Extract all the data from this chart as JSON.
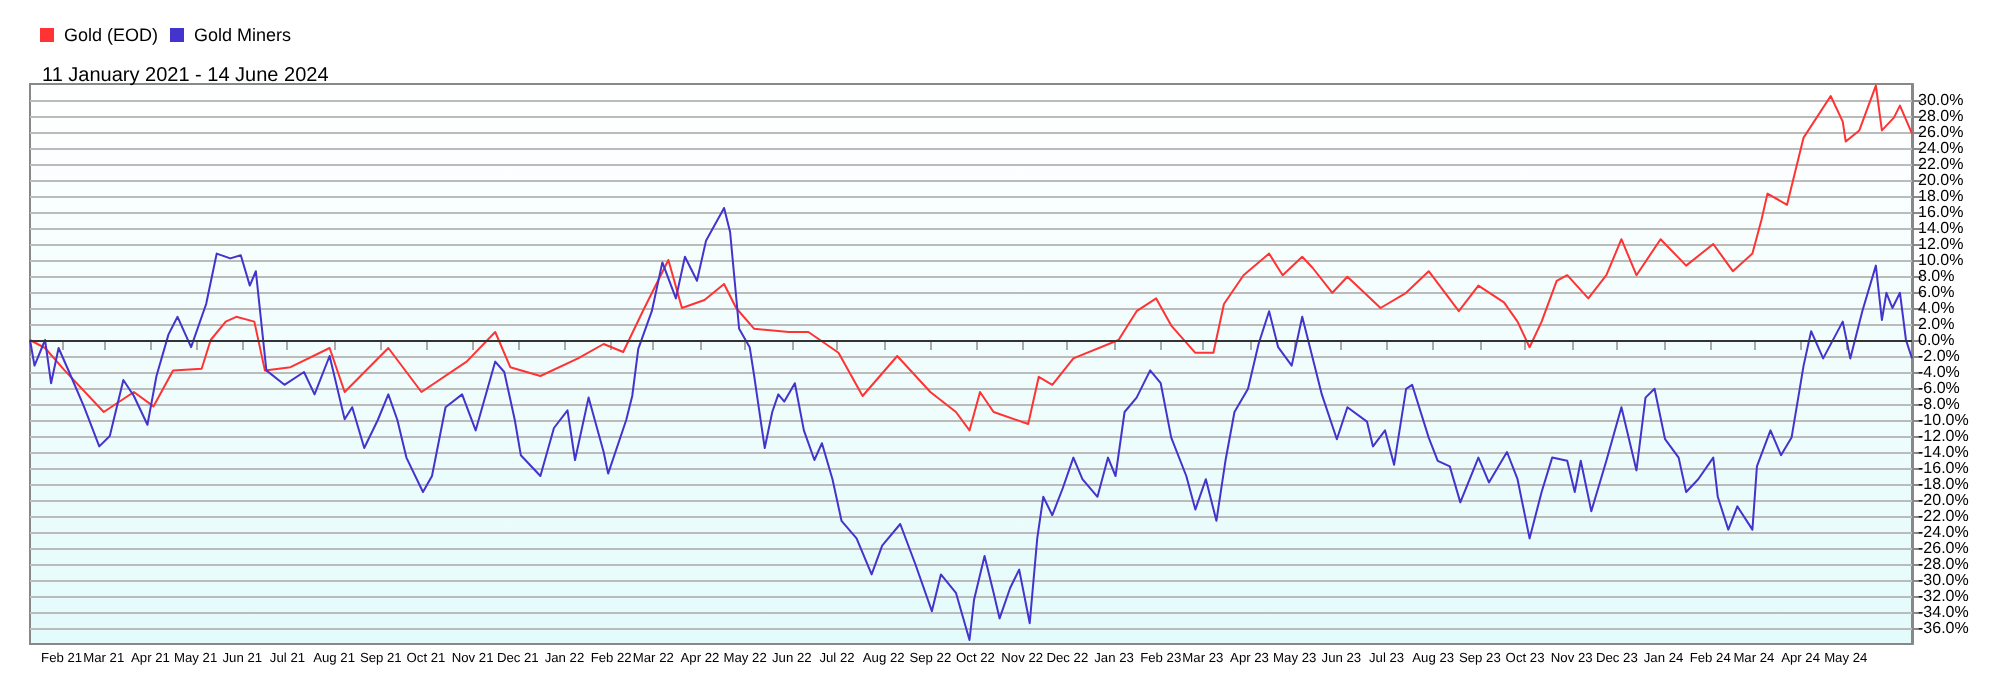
{
  "chart_data": {
    "type": "line",
    "subtitle": "11 January 2021 - 14 June 2024",
    "legend": "top left",
    "grid": "y",
    "xlim": [
      "2021-01-11",
      "2024-06-14"
    ],
    "ylim": [
      -38,
      32
    ],
    "xticks": [
      {
        "value": "2021-02-01",
        "label": "Feb 21"
      },
      {
        "value": "2021-03-01",
        "label": "Mar 21"
      },
      {
        "value": "2021-04-01",
        "label": "Apr 21"
      },
      {
        "value": "2021-05-01",
        "label": "May 21"
      },
      {
        "value": "2021-06-01",
        "label": "Jun 21"
      },
      {
        "value": "2021-07-01",
        "label": "Jul 21"
      },
      {
        "value": "2021-08-01",
        "label": "Aug 21"
      },
      {
        "value": "2021-09-01",
        "label": "Sep 21"
      },
      {
        "value": "2021-10-01",
        "label": "Oct 21"
      },
      {
        "value": "2021-11-01",
        "label": "Nov 21"
      },
      {
        "value": "2021-12-01",
        "label": "Dec 21"
      },
      {
        "value": "2022-01-01",
        "label": "Jan 22"
      },
      {
        "value": "2022-02-01",
        "label": "Feb 22"
      },
      {
        "value": "2022-03-01",
        "label": "Mar 22"
      },
      {
        "value": "2022-04-01",
        "label": "Apr 22"
      },
      {
        "value": "2022-05-01",
        "label": "May 22"
      },
      {
        "value": "2022-06-01",
        "label": "Jun 22"
      },
      {
        "value": "2022-07-01",
        "label": "Jul 22"
      },
      {
        "value": "2022-08-01",
        "label": "Aug 22"
      },
      {
        "value": "2022-09-01",
        "label": "Sep 22"
      },
      {
        "value": "2022-10-01",
        "label": "Oct 22"
      },
      {
        "value": "2022-11-01",
        "label": "Nov 22"
      },
      {
        "value": "2022-12-01",
        "label": "Dec 22"
      },
      {
        "value": "2023-01-01",
        "label": "Jan 23"
      },
      {
        "value": "2023-02-01",
        "label": "Feb 23"
      },
      {
        "value": "2023-03-01",
        "label": "Mar 23"
      },
      {
        "value": "2023-04-01",
        "label": "Apr 23"
      },
      {
        "value": "2023-05-01",
        "label": "May 23"
      },
      {
        "value": "2023-06-01",
        "label": "Jun 23"
      },
      {
        "value": "2023-07-01",
        "label": "Jul 23"
      },
      {
        "value": "2023-08-01",
        "label": "Aug 23"
      },
      {
        "value": "2023-09-01",
        "label": "Sep 23"
      },
      {
        "value": "2023-10-01",
        "label": "Oct 23"
      },
      {
        "value": "2023-11-01",
        "label": "Nov 23"
      },
      {
        "value": "2023-12-01",
        "label": "Dec 23"
      },
      {
        "value": "2024-01-01",
        "label": "Jan 24"
      },
      {
        "value": "2024-02-01",
        "label": "Feb 24"
      },
      {
        "value": "2024-03-01",
        "label": "Mar 24"
      },
      {
        "value": "2024-04-01",
        "label": "Apr 24"
      },
      {
        "value": "2024-05-01",
        "label": "May 24"
      }
    ],
    "yticks": [
      {
        "value": -36,
        "label": "-36.0%"
      },
      {
        "value": -34,
        "label": "-34.0%"
      },
      {
        "value": -32,
        "label": "-32.0%"
      },
      {
        "value": -30,
        "label": "-30.0%"
      },
      {
        "value": -28,
        "label": "-28.0%"
      },
      {
        "value": -26,
        "label": "-26.0%"
      },
      {
        "value": -24,
        "label": "-24.0%"
      },
      {
        "value": -22,
        "label": "-22.0%"
      },
      {
        "value": -20,
        "label": "-20.0%"
      },
      {
        "value": -18,
        "label": "-18.0%"
      },
      {
        "value": -16,
        "label": "-16.0%"
      },
      {
        "value": -14,
        "label": "-14.0%"
      },
      {
        "value": -12,
        "label": "-12.0%"
      },
      {
        "value": -10,
        "label": "-10.0%"
      },
      {
        "value": -8,
        "label": "-8.0%"
      },
      {
        "value": -6,
        "label": "-6.0%"
      },
      {
        "value": -4,
        "label": "-4.0%"
      },
      {
        "value": -2,
        "label": "-2.0%"
      },
      {
        "value": 0,
        "label": "0.0%"
      },
      {
        "value": 2,
        "label": "2.0%"
      },
      {
        "value": 4,
        "label": "4.0%"
      },
      {
        "value": 6,
        "label": "6.0%"
      },
      {
        "value": 8,
        "label": "8.0%"
      },
      {
        "value": 10,
        "label": "10.0%"
      },
      {
        "value": 12,
        "label": "12.0%"
      },
      {
        "value": 14,
        "label": "14.0%"
      },
      {
        "value": 16,
        "label": "16.0%"
      },
      {
        "value": 18,
        "label": "18.0%"
      },
      {
        "value": 20,
        "label": "20.0%"
      },
      {
        "value": 22,
        "label": "22.0%"
      },
      {
        "value": 24,
        "label": "24.0%"
      },
      {
        "value": 26,
        "label": "26.0%"
      },
      {
        "value": 28,
        "label": "28.0%"
      },
      {
        "value": 30,
        "label": "30.0%"
      }
    ],
    "ref_lines": [
      {
        "axis": "y",
        "value": 0,
        "color": "#333333"
      }
    ],
    "series": [
      {
        "name": "Gold (EOD)",
        "color": "#ff3333",
        "x": [
          "2021-01-11",
          "2021-01-21",
          "2021-02-03",
          "2021-03-01",
          "2021-03-21",
          "2021-04-03",
          "2021-04-16",
          "2021-05-05",
          "2021-05-11",
          "2021-05-21",
          "2021-05-28",
          "2021-06-09",
          "2021-06-16",
          "2021-07-03",
          "2021-07-29",
          "2021-08-08",
          "2021-09-06",
          "2021-09-28",
          "2021-10-28",
          "2021-11-16",
          "2021-11-26",
          "2021-12-16",
          "2022-01-10",
          "2022-01-27",
          "2022-02-09",
          "2022-02-22",
          "2022-03-11",
          "2022-03-20",
          "2022-04-04",
          "2022-04-17",
          "2022-04-25",
          "2022-05-07",
          "2022-05-30",
          "2022-06-12",
          "2022-07-02",
          "2022-07-18",
          "2022-08-10",
          "2022-09-01",
          "2022-09-18",
          "2022-09-27",
          "2022-10-04",
          "2022-10-13",
          "2022-11-05",
          "2022-11-12",
          "2022-11-21",
          "2022-12-05",
          "2023-01-04",
          "2023-01-16",
          "2023-01-29",
          "2023-02-08",
          "2023-02-24",
          "2023-03-08",
          "2023-03-15",
          "2023-03-28",
          "2023-04-14",
          "2023-04-23",
          "2023-05-06",
          "2023-05-13",
          "2023-05-26",
          "2023-06-05",
          "2023-06-27",
          "2023-07-14",
          "2023-07-29",
          "2023-08-18",
          "2023-08-31",
          "2023-09-17",
          "2023-09-26",
          "2023-10-04",
          "2023-10-12",
          "2023-10-22",
          "2023-10-29",
          "2023-11-12",
          "2023-11-24",
          "2023-12-04",
          "2023-12-14",
          "2023-12-30",
          "2024-01-16",
          "2024-02-03",
          "2024-02-16",
          "2024-02-29",
          "2024-03-06",
          "2024-03-10",
          "2024-03-23",
          "2024-04-03",
          "2024-04-21",
          "2024-04-29",
          "2024-05-01",
          "2024-05-10",
          "2024-05-21",
          "2024-05-25",
          "2024-06-02",
          "2024-06-06",
          "2024-06-14"
        ],
        "values": [
          0,
          -1,
          -3.8,
          -9,
          -6.5,
          -8.3,
          -3.8,
          -3.6,
          0,
          2.3,
          2.9,
          2.3,
          -3.8,
          -3.4,
          -1,
          -6.5,
          -1,
          -6.5,
          -2.7,
          1,
          -3.4,
          -4.5,
          -2.3,
          -0.5,
          -1.5,
          3.6,
          10,
          4,
          5,
          7,
          4,
          1.4,
          1,
          1,
          -1.6,
          -7,
          -2,
          -6.5,
          -9,
          -11.3,
          -6.5,
          -9,
          -10.5,
          -4.6,
          -5.6,
          -2.3,
          0,
          3.6,
          5.2,
          1.8,
          -1.6,
          -1.6,
          4.5,
          8.1,
          10.8,
          8.1,
          10.4,
          9,
          5.9,
          7.9,
          4,
          5.9,
          8.6,
          3.6,
          6.8,
          4.7,
          2.3,
          -0.9,
          2.3,
          7.4,
          8.1,
          5.2,
          8.1,
          12.6,
          8.1,
          12.6,
          9.3,
          12,
          8.6,
          10.8,
          15,
          18.3,
          16.9,
          25.3,
          30.5,
          27.3,
          24.8,
          26.2,
          31.8,
          26.2,
          27.8,
          29.3,
          25.8
        ]
      },
      {
        "name": "Gold Miners",
        "color": "#4433cc",
        "x": [
          "2021-01-11",
          "2021-01-14",
          "2021-01-21",
          "2021-01-25",
          "2021-01-30",
          "2021-02-06",
          "2021-02-16",
          "2021-02-26",
          "2021-03-05",
          "2021-03-14",
          "2021-03-21",
          "2021-03-30",
          "2021-04-05",
          "2021-04-13",
          "2021-04-19",
          "2021-04-28",
          "2021-05-08",
          "2021-05-15",
          "2021-05-24",
          "2021-05-31",
          "2021-06-06",
          "2021-06-10",
          "2021-06-17",
          "2021-06-29",
          "2021-07-12",
          "2021-07-19",
          "2021-07-29",
          "2021-08-08",
          "2021-08-13",
          "2021-08-21",
          "2021-08-30",
          "2021-09-06",
          "2021-09-12",
          "2021-09-18",
          "2021-09-29",
          "2021-10-05",
          "2021-10-14",
          "2021-10-25",
          "2021-11-03",
          "2021-11-16",
          "2021-11-22",
          "2021-11-29",
          "2021-12-03",
          "2021-12-16",
          "2021-12-25",
          "2022-01-03",
          "2022-01-08",
          "2022-01-17",
          "2022-01-27",
          "2022-01-30",
          "2022-02-11",
          "2022-02-15",
          "2022-02-19",
          "2022-02-28",
          "2022-03-07",
          "2022-03-16",
          "2022-03-22",
          "2022-03-30",
          "2022-04-05",
          "2022-04-17",
          "2022-04-21",
          "2022-04-27",
          "2022-05-04",
          "2022-05-07",
          "2022-05-10",
          "2022-05-14",
          "2022-05-19",
          "2022-05-23",
          "2022-05-27",
          "2022-06-03",
          "2022-06-09",
          "2022-06-16",
          "2022-06-21",
          "2022-06-28",
          "2022-07-04",
          "2022-07-14",
          "2022-07-24",
          "2022-07-31",
          "2022-08-12",
          "2022-08-22",
          "2022-09-02",
          "2022-09-08",
          "2022-09-18",
          "2022-09-27",
          "2022-09-30",
          "2022-10-07",
          "2022-10-13",
          "2022-10-17",
          "2022-10-24",
          "2022-10-30",
          "2022-11-06",
          "2022-11-11",
          "2022-11-15",
          "2022-11-21",
          "2022-11-28",
          "2022-12-05",
          "2022-12-11",
          "2022-12-21",
          "2022-12-28",
          "2023-01-02",
          "2023-01-08",
          "2023-01-16",
          "2023-01-25",
          "2023-02-01",
          "2023-02-08",
          "2023-02-18",
          "2023-02-24",
          "2023-03-03",
          "2023-03-10",
          "2023-03-16",
          "2023-03-22",
          "2023-03-31",
          "2023-04-07",
          "2023-04-14",
          "2023-04-20",
          "2023-04-29",
          "2023-05-06",
          "2023-05-13",
          "2023-05-19",
          "2023-05-29",
          "2023-06-05",
          "2023-06-18",
          "2023-06-22",
          "2023-06-30",
          "2023-07-06",
          "2023-07-14",
          "2023-07-18",
          "2023-07-29",
          "2023-08-04",
          "2023-08-12",
          "2023-08-19",
          "2023-08-31",
          "2023-09-07",
          "2023-09-19",
          "2023-09-26",
          "2023-10-04",
          "2023-10-12",
          "2023-10-19",
          "2023-10-29",
          "2023-11-03",
          "2023-11-07",
          "2023-11-14",
          "2023-11-24",
          "2023-12-04",
          "2023-12-14",
          "2023-12-20",
          "2023-12-26",
          "2024-01-02",
          "2024-01-11",
          "2024-01-16",
          "2024-01-24",
          "2024-02-03",
          "2024-02-06",
          "2024-02-13",
          "2024-02-19",
          "2024-02-29",
          "2024-03-03",
          "2024-03-12",
          "2024-03-19",
          "2024-03-26",
          "2024-04-03",
          "2024-04-08",
          "2024-04-16",
          "2024-04-29",
          "2024-05-04",
          "2024-05-12",
          "2024-05-21",
          "2024-05-25",
          "2024-05-28",
          "2024-06-01",
          "2024-06-06",
          "2024-06-10",
          "2024-06-14"
        ],
        "values": [
          0,
          -3.2,
          0,
          -5.4,
          -1,
          -4,
          -8.4,
          -13.3,
          -12,
          -5,
          -7,
          -10.6,
          -4.5,
          0.7,
          2.9,
          -0.9,
          4.5,
          10.8,
          10.2,
          10.6,
          6.8,
          8.6,
          -3.8,
          -5.6,
          -4,
          -6.8,
          -2,
          -9.9,
          -8.4,
          -13.5,
          -10,
          -6.8,
          -10,
          -14.7,
          -19,
          -17,
          -8.4,
          -6.8,
          -11.3,
          -2.7,
          -4,
          -10,
          -14.4,
          -17,
          -11,
          -8.8,
          -15,
          -7.2,
          -14,
          -16.7,
          -10,
          -7,
          -1.1,
          3.6,
          9.7,
          5.2,
          10.4,
          7.4,
          12.4,
          16.5,
          13.5,
          1.4,
          -0.9,
          -4.5,
          -8.4,
          -13.5,
          -9,
          -6.8,
          -7.7,
          -5.4,
          -11.3,
          -15,
          -12.9,
          -17.4,
          -22.6,
          -24.8,
          -29.3,
          -25.7,
          -23,
          -28,
          -33.9,
          -29.3,
          -31.6,
          -37.5,
          -32.5,
          -27,
          -31.6,
          -34.8,
          -31,
          -28.7,
          -35.4,
          -24.8,
          -19.6,
          -21.9,
          -18.5,
          -14.7,
          -17.4,
          -19.6,
          -14.7,
          -17,
          -9,
          -7.2,
          -3.8,
          -5.4,
          -12.2,
          -17,
          -21.2,
          -17.4,
          -22.6,
          -15.1,
          -9,
          -6.1,
          -0.5,
          3.6,
          -0.9,
          -3.2,
          2.9,
          -2.3,
          -6.8,
          -12.4,
          -8.4,
          -10.2,
          -13.3,
          -11.3,
          -15.6,
          -6.1,
          -5.6,
          -12.2,
          -15.1,
          -15.8,
          -20.3,
          -14.7,
          -17.8,
          -14,
          -17.4,
          -24.8,
          -19,
          -14.7,
          -15.1,
          -19,
          -15.1,
          -21.4,
          -15.1,
          -8.4,
          -16.3,
          -7.2,
          -6.1,
          -12.4,
          -14.7,
          -19,
          -17.4,
          -14.7,
          -19.6,
          -23.7,
          -20.8,
          -23.7,
          -15.8,
          -11.3,
          -14.4,
          -12.2,
          -3.2,
          1.1,
          -2.3,
          2.3,
          -2.3,
          3.6,
          9.3,
          2.5,
          5.9,
          4,
          5.9,
          0,
          -2.3
        ]
      }
    ]
  }
}
